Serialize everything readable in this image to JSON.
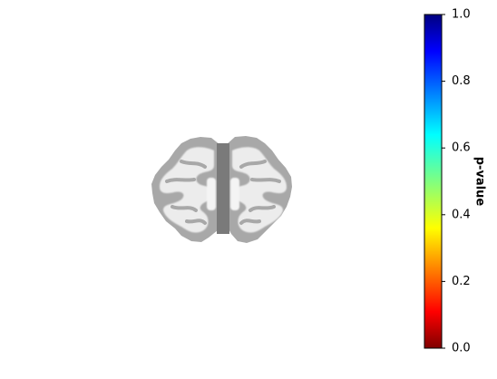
{
  "colorbar": {
    "label": "p-value",
    "colormap": "jet_r",
    "range": [
      0.0,
      1.0
    ],
    "ticks": [
      {
        "value": 0.0,
        "label": "0.0"
      },
      {
        "value": 0.2,
        "label": "0.2"
      },
      {
        "value": 0.4,
        "label": "0.4"
      },
      {
        "value": 0.6,
        "label": "0.6"
      },
      {
        "value": 0.8,
        "label": "0.8"
      },
      {
        "value": 1.0,
        "label": "1.0"
      }
    ],
    "stops": [
      {
        "value": 0.0,
        "color": "#800000"
      },
      {
        "value": 0.11,
        "color": "#ff0000"
      },
      {
        "value": 0.36,
        "color": "#ffff00"
      },
      {
        "value": 0.5,
        "color": "#80ff80"
      },
      {
        "value": 0.64,
        "color": "#00ffff"
      },
      {
        "value": 0.89,
        "color": "#0000ff"
      },
      {
        "value": 1.0,
        "color": "#000080"
      }
    ]
  },
  "brain": {
    "view": "coronal slice",
    "cortex_color": "#a8a8a8",
    "white_matter_color": "#ececec",
    "midline_color": "#7a7a7a"
  }
}
